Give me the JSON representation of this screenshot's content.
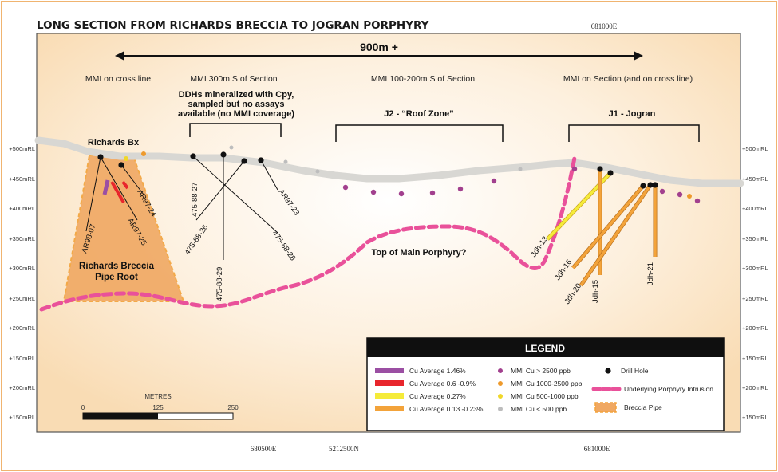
{
  "title": "LONG SECTION FROM RICHARDS BRECCIA TO JOGRAN PORPHYRY",
  "top_coord": "681000E",
  "bottom_coords": [
    "680500E",
    "5212500N",
    "681000E"
  ],
  "span_label": "900m +",
  "mmi_labels": [
    "MMI on cross line",
    "MMI 300m S of Section",
    "MMI 100-200m S of Section",
    "MMI on Section (and on cross line)"
  ],
  "ddh_note": [
    "DDHs mineralized with Cpy,",
    "sampled but no assays",
    "available (no MMI coverage)"
  ],
  "zones": {
    "j2": "J2 - “Roof Zone”",
    "j1": "J1 - Jogran"
  },
  "richards_bx": "Richards Bx",
  "pipe_root": [
    "Richards Breccia",
    "Pipe Root"
  ],
  "top_porphyry": "Top of Main Porphyry?",
  "elevations": [
    "+500mRL",
    "+450mRL",
    "+400mRL",
    "+350mRL",
    "+300mRL",
    "+250mRL",
    "+200mRL",
    "+150mRL",
    "+200mRL",
    "+150mRL"
  ],
  "holes": {
    "AR98-07": "AR98-07",
    "AR97-24": "AR97-24",
    "AR97-25": "AR97-25",
    "475-88-27": "475-88-27",
    "475-88-26": "475-88-26",
    "475-88-29": "475-88-29",
    "475-88-28": "475-88-28",
    "AR97-23": "AR97-23",
    "Jdh-13": "Jdh-13",
    "Jdh-16": "Jdh-16",
    "Jdh-20": "Jdh-20",
    "Jdh-15": "Jdh-15",
    "Jdh-21": "Jdh-21"
  },
  "scale": {
    "title": "METRES",
    "ticks": [
      "0",
      "125",
      "250"
    ]
  },
  "legend": {
    "title": "LEGEND",
    "cu_items": [
      {
        "label": "Cu Average 1.46%",
        "color": "#9b4fa3"
      },
      {
        "label": "Cu Average 0.6 -0.9%",
        "color": "#e8262c"
      },
      {
        "label": "Cu Average 0.27%",
        "color": "#f5eb3a"
      },
      {
        "label": "Cu Average 0.13 -0.23%",
        "color": "#f3a33a"
      }
    ],
    "mmi_items": [
      {
        "label": "MMI Cu > 2500 ppb",
        "color": "#a2408e"
      },
      {
        "label": "MMI Cu 1000-2500 ppb",
        "color": "#ee9a2c"
      },
      {
        "label": "MMI Cu 500-1000 ppb",
        "color": "#f0d72a"
      },
      {
        "label": "MMI Cu < 500 ppb",
        "color": "#bdbdbd"
      }
    ],
    "other_items": {
      "drill_hole": "Drill Hole",
      "porphyry": "Underlying Porphyry Intrusion",
      "breccia": "Breccia Pipe"
    }
  },
  "colors": {
    "porphyry": "#e9519a",
    "breccia": "#f0a862",
    "ground": "#d8d7d3",
    "frame": "#f0b470"
  }
}
